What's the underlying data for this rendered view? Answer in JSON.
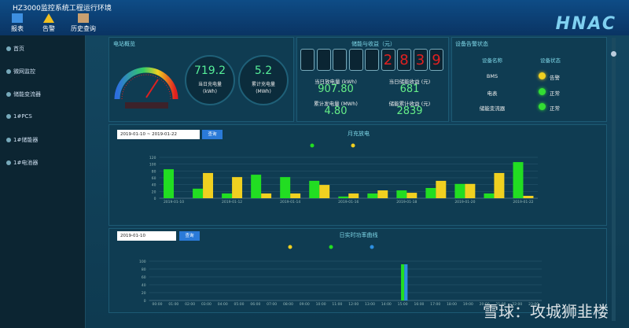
{
  "header": {
    "title": "HZ3000监控系统工程运行环境",
    "toolbar": [
      "报表",
      "告警",
      "历史查询"
    ],
    "logo": "HNAC"
  },
  "sidebar": [
    "首页",
    "微网监控",
    "储能变流器",
    "1#PCS",
    "1#储能器",
    "1#电池器"
  ],
  "overview": {
    "title": "电站概览",
    "today_charge": {
      "value": "719.2",
      "label": "当日充电量",
      "unit": "(kWh)"
    },
    "total_charge": {
      "value": "5.2",
      "label": "累计充电量",
      "unit": "(MWh)"
    }
  },
  "revenue": {
    "title": "储能与收益（元）",
    "digits": [
      "2",
      "8",
      "3",
      "9"
    ],
    "stats": [
      {
        "label": "当日放电量 (kWh)",
        "value": "907.80"
      },
      {
        "label": "当日储能收益 (元)",
        "value": "681"
      },
      {
        "label": "累计发电量 (MWh)",
        "value": "4.80"
      },
      {
        "label": "储能累计收益 (元)",
        "value": "2839"
      }
    ]
  },
  "alarm": {
    "title": "设备告警状态",
    "headers": [
      "设备名称",
      "设备状态"
    ],
    "rows": [
      {
        "name": "BMS",
        "status": "告警",
        "color": "#f0d020"
      },
      {
        "name": "电表",
        "status": "正常",
        "color": "#33dd33"
      },
      {
        "name": "储能变流器",
        "status": "正常",
        "color": "#33dd33"
      }
    ]
  },
  "chart_controls": [
    {
      "date": "2019-01-10 ~ 2019-01-22",
      "button": "查询"
    },
    {
      "date": "2019-01-10",
      "button": "查询"
    }
  ],
  "chart_data": [
    {
      "type": "bar",
      "title": "月充放电",
      "categories": [
        "2019-01-10",
        null,
        "2019-01-12",
        null,
        "2019-01-14",
        null,
        "2019-01-16",
        null,
        "2019-01-18",
        null,
        "2019-01-20",
        null,
        "2019-01-22"
      ],
      "series": [
        {
          "color": "#22dd22",
          "values": [
            85,
            28,
            14,
            69,
            62,
            51,
            5,
            14,
            23,
            30,
            42,
            14,
            106
          ]
        },
        {
          "color": "#f0d020",
          "values": [
            0,
            74,
            62,
            14,
            14,
            39,
            14,
            23,
            16,
            51,
            42,
            74,
            7
          ]
        }
      ],
      "ylim": [
        0,
        120
      ],
      "yticks": [
        0,
        20,
        40,
        60,
        80,
        100,
        120
      ],
      "grid": true
    },
    {
      "type": "bar",
      "title": "日实时功率曲线",
      "categories": [
        "00:00",
        "01:00",
        "02:00",
        "03:00",
        "04:00",
        "05:00",
        "06:00",
        "07:00",
        "08:00",
        "09:00",
        "10:00",
        "11:00",
        "12:00",
        "13:00",
        "14:00",
        "15:00",
        "16:00",
        "17:00",
        "18:00",
        "19:00",
        "20:00",
        "21:00",
        "22:00",
        "23:00"
      ],
      "series": [
        {
          "color": "#f0d020",
          "values": [
            0,
            0,
            0,
            0,
            0,
            0,
            0,
            0,
            0,
            0,
            0,
            0,
            0,
            0,
            0,
            0,
            0,
            0,
            0,
            0,
            0,
            0,
            0,
            0
          ]
        },
        {
          "color": "#22dd22",
          "values": [
            0,
            0,
            0,
            0,
            0,
            0,
            0,
            0,
            0,
            0,
            0,
            0,
            0,
            0,
            0,
            92,
            0,
            0,
            0,
            0,
            0,
            0,
            0,
            0
          ]
        },
        {
          "color": "#2d8fe0",
          "values": [
            0,
            0,
            0,
            0,
            0,
            0,
            0,
            0,
            0,
            0,
            0,
            0,
            0,
            0,
            0,
            92,
            0,
            0,
            0,
            0,
            0,
            0,
            0,
            0
          ]
        }
      ],
      "ylim": [
        0,
        100
      ],
      "yticks": [
        0,
        20,
        40,
        60,
        80,
        100
      ],
      "grid": true
    }
  ],
  "watermark": "雪球：攻城狮韭楼"
}
